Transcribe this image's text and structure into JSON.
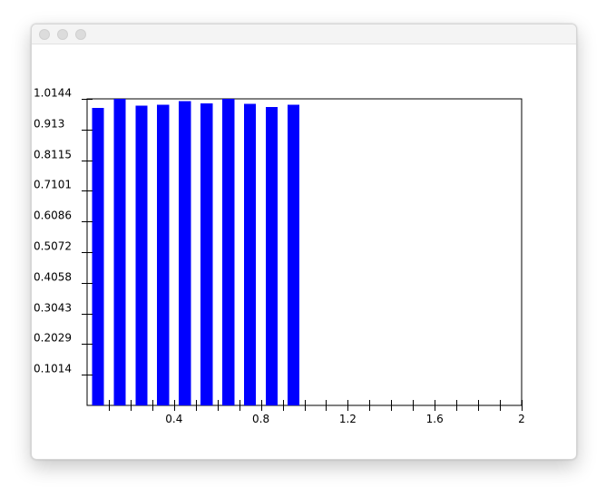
{
  "window": {
    "title": ""
  },
  "chart_data": {
    "type": "bar",
    "title": "",
    "xlabel": "",
    "ylabel": "",
    "x": [
      0.05,
      0.15,
      0.25,
      0.35,
      0.45,
      0.55,
      0.65,
      0.75,
      0.85,
      0.95
    ],
    "values": [
      0.9845,
      1.0139,
      0.9915,
      0.9955,
      1.0075,
      0.9995,
      1.0155,
      0.9985,
      0.9875,
      0.9955
    ],
    "bar_width": 0.055,
    "xlim": [
      0,
      2
    ],
    "ylim": [
      0,
      1.0144
    ],
    "x_ticks_labeled": [
      "0.4",
      "0.8",
      "1.2",
      "1.6",
      "2"
    ],
    "x_tick_values_labeled": [
      0.4,
      0.8,
      1.2,
      1.6,
      2.0
    ],
    "x_tick_step": 0.1,
    "y_ticks": [
      "0.1014",
      "0.2029",
      "0.3043",
      "0.4058",
      "0.5072",
      "0.6086",
      "0.7101",
      "0.8115",
      "0.913",
      "1.0144"
    ],
    "y_tick_values": [
      0.1014,
      0.2029,
      0.3043,
      0.4058,
      0.5072,
      0.6086,
      0.7101,
      0.8115,
      0.913,
      1.0144
    ],
    "bar_color": "#0000ff",
    "grid": false,
    "legend": "none"
  }
}
